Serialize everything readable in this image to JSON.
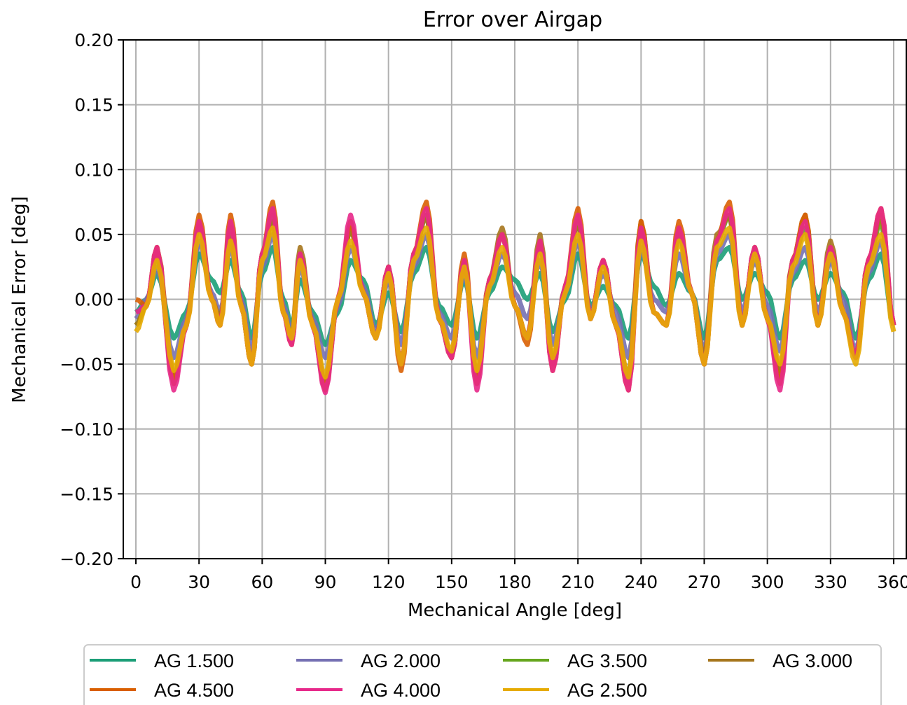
{
  "chart_data": {
    "type": "line",
    "title": "Error over Airgap",
    "xlabel": "Mechanical Angle [deg]",
    "ylabel": "Mechanical Error [deg]",
    "xlim": [
      -6,
      366
    ],
    "ylim": [
      -0.2,
      0.2
    ],
    "xticks": [
      0,
      30,
      60,
      90,
      120,
      150,
      180,
      210,
      240,
      270,
      300,
      330,
      360
    ],
    "yticks": [
      0.2,
      0.15,
      0.1,
      0.05,
      0.0,
      -0.05,
      -0.1,
      -0.15,
      -0.2
    ],
    "ytick_labels": [
      "0.20",
      "0.15",
      "0.10",
      "0.05",
      "0.00",
      "−0.05",
      "−0.10",
      "−0.15",
      "−0.20"
    ],
    "grid": true,
    "legend_position": "bottom, outside plot",
    "x": [
      0,
      5,
      10,
      18,
      24,
      30,
      36,
      40,
      45,
      50,
      55,
      60,
      65,
      70,
      74,
      78,
      84,
      90,
      96,
      102,
      108,
      114,
      120,
      126,
      132,
      138,
      144,
      150,
      156,
      162,
      168,
      174,
      180,
      186,
      192,
      198,
      204,
      210,
      216,
      222,
      228,
      234,
      240,
      246,
      252,
      258,
      264,
      270,
      276,
      282,
      288,
      294,
      300,
      306,
      312,
      318,
      324,
      330,
      336,
      342,
      348,
      354,
      360
    ],
    "series": [
      {
        "name": "AG 1.500",
        "color": "#1b9e77",
        "values": [
          -0.01,
          0.0,
          0.02,
          -0.03,
          -0.01,
          0.035,
          0.015,
          0.005,
          0.03,
          0.005,
          -0.03,
          0.02,
          0.04,
          0.0,
          -0.02,
          0.015,
          -0.01,
          -0.035,
          -0.01,
          0.03,
          0.015,
          -0.02,
          0.005,
          -0.025,
          0.02,
          0.04,
          -0.005,
          -0.02,
          0.015,
          -0.03,
          0.005,
          0.025,
          0.015,
          0.0,
          0.02,
          -0.025,
          0.0,
          0.035,
          -0.005,
          0.01,
          -0.005,
          -0.03,
          0.035,
          0.01,
          -0.005,
          0.02,
          0.005,
          -0.03,
          0.03,
          0.04,
          0.0,
          0.02,
          0.005,
          -0.03,
          0.015,
          0.03,
          0.0,
          0.02,
          0.005,
          -0.03,
          0.015,
          0.035,
          -0.02
        ]
      },
      {
        "name": "AG 2.000",
        "color": "#7570b3",
        "values": [
          -0.015,
          0.0,
          0.025,
          -0.045,
          -0.015,
          0.045,
          0.005,
          -0.01,
          0.04,
          0.0,
          -0.04,
          0.025,
          0.05,
          -0.005,
          -0.025,
          0.025,
          -0.015,
          -0.045,
          -0.005,
          0.04,
          0.01,
          -0.025,
          0.015,
          -0.035,
          0.025,
          0.05,
          -0.01,
          -0.03,
          0.02,
          -0.045,
          0.01,
          0.035,
          0.005,
          -0.015,
          0.03,
          -0.035,
          0.005,
          0.045,
          -0.01,
          0.02,
          -0.01,
          -0.045,
          0.04,
          0.0,
          -0.01,
          0.035,
          0.005,
          -0.04,
          0.035,
          0.05,
          -0.01,
          0.03,
          -0.005,
          -0.04,
          0.02,
          0.04,
          -0.01,
          0.03,
          0.0,
          -0.04,
          0.02,
          0.045,
          -0.02
        ]
      },
      {
        "name": "AG 3.500",
        "color": "#66a61e",
        "values": [
          -0.02,
          -0.005,
          0.035,
          -0.065,
          -0.02,
          0.06,
          0.0,
          -0.02,
          0.055,
          -0.005,
          -0.05,
          0.035,
          0.065,
          -0.01,
          -0.03,
          0.035,
          -0.02,
          -0.07,
          0.0,
          0.055,
          0.005,
          -0.03,
          0.025,
          -0.05,
          0.035,
          0.065,
          -0.015,
          -0.045,
          0.03,
          -0.065,
          0.015,
          0.05,
          -0.005,
          -0.03,
          0.045,
          -0.05,
          0.01,
          0.06,
          -0.015,
          0.03,
          -0.02,
          -0.065,
          0.055,
          -0.01,
          -0.02,
          0.05,
          0.005,
          -0.05,
          0.045,
          0.065,
          -0.02,
          0.04,
          -0.015,
          -0.06,
          0.03,
          0.055,
          -0.02,
          0.04,
          -0.01,
          -0.045,
          0.03,
          0.06,
          -0.02
        ]
      },
      {
        "name": "AG 3.000",
        "color": "#a6761d",
        "values": [
          -0.02,
          -0.005,
          0.04,
          -0.06,
          -0.02,
          0.06,
          0.0,
          -0.015,
          0.05,
          -0.005,
          -0.05,
          0.035,
          0.06,
          -0.01,
          -0.03,
          0.04,
          -0.02,
          -0.065,
          0.0,
          0.055,
          0.005,
          -0.03,
          0.025,
          -0.05,
          0.035,
          0.065,
          -0.015,
          -0.045,
          0.03,
          -0.06,
          0.015,
          0.055,
          -0.005,
          -0.03,
          0.05,
          -0.05,
          0.01,
          0.06,
          -0.015,
          0.03,
          -0.02,
          -0.06,
          0.06,
          -0.01,
          -0.02,
          0.055,
          0.005,
          -0.045,
          0.05,
          0.065,
          -0.02,
          0.04,
          -0.015,
          -0.055,
          0.03,
          0.065,
          -0.02,
          0.045,
          -0.01,
          -0.045,
          0.03,
          0.065,
          -0.02
        ]
      },
      {
        "name": "AG 4.500",
        "color": "#d95f02",
        "values": [
          0.0,
          -0.005,
          0.04,
          -0.065,
          -0.02,
          0.065,
          0.0,
          -0.02,
          0.065,
          -0.005,
          -0.05,
          0.035,
          0.075,
          -0.01,
          -0.035,
          0.035,
          -0.02,
          -0.07,
          0.0,
          0.06,
          0.005,
          -0.03,
          0.025,
          -0.055,
          0.035,
          0.075,
          -0.015,
          -0.045,
          0.035,
          -0.065,
          0.015,
          0.05,
          -0.005,
          -0.035,
          0.045,
          -0.055,
          0.01,
          0.07,
          -0.015,
          0.03,
          -0.02,
          -0.07,
          0.06,
          -0.01,
          -0.02,
          0.06,
          0.005,
          -0.05,
          0.045,
          0.075,
          -0.02,
          0.04,
          -0.015,
          -0.065,
          0.03,
          0.065,
          -0.02,
          0.04,
          -0.01,
          -0.045,
          0.03,
          0.07,
          -0.02
        ]
      },
      {
        "name": "AG 4.000",
        "color": "#e7298a",
        "values": [
          -0.01,
          -0.005,
          0.04,
          -0.07,
          -0.02,
          0.06,
          0.0,
          -0.02,
          0.06,
          -0.005,
          -0.05,
          0.035,
          0.07,
          -0.01,
          -0.035,
          0.035,
          -0.02,
          -0.072,
          0.0,
          0.065,
          0.005,
          -0.03,
          0.025,
          -0.05,
          0.035,
          0.07,
          -0.015,
          -0.045,
          0.03,
          -0.07,
          0.015,
          0.05,
          -0.005,
          -0.03,
          0.045,
          -0.055,
          0.01,
          0.065,
          -0.015,
          0.03,
          -0.02,
          -0.07,
          0.055,
          -0.01,
          -0.02,
          0.055,
          0.005,
          -0.05,
          0.045,
          0.07,
          -0.02,
          0.04,
          -0.015,
          -0.07,
          0.03,
          0.06,
          -0.02,
          0.04,
          -0.01,
          -0.045,
          0.03,
          0.07,
          -0.02
        ]
      },
      {
        "name": "AG 2.500",
        "color": "#e6ab02",
        "values": [
          -0.025,
          -0.005,
          0.03,
          -0.055,
          -0.02,
          0.05,
          0.0,
          -0.02,
          0.045,
          -0.005,
          -0.05,
          0.03,
          0.055,
          -0.01,
          -0.03,
          0.03,
          -0.02,
          -0.06,
          0.0,
          0.045,
          0.005,
          -0.03,
          0.02,
          -0.05,
          0.03,
          0.055,
          -0.015,
          -0.04,
          0.025,
          -0.055,
          0.01,
          0.04,
          -0.005,
          -0.03,
          0.035,
          -0.045,
          0.005,
          0.05,
          -0.015,
          0.025,
          -0.02,
          -0.06,
          0.045,
          -0.01,
          -0.02,
          0.045,
          0.005,
          -0.05,
          0.04,
          0.055,
          -0.02,
          0.035,
          -0.015,
          -0.05,
          0.025,
          0.05,
          -0.02,
          0.035,
          -0.01,
          -0.05,
          0.025,
          0.05,
          -0.025
        ]
      }
    ]
  }
}
